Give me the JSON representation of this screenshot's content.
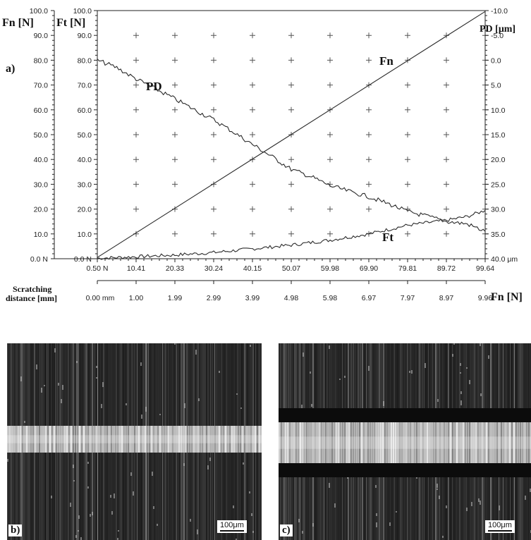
{
  "figure": {
    "panel_a": "a)",
    "panel_b": "b)",
    "panel_c": "c)",
    "scalebar_b": "100μm",
    "scalebar_c": "100μm"
  },
  "chart_data": {
    "type": "line",
    "axis_titles": {
      "fn": "Fn [N]",
      "ft": "Ft [N]",
      "pd": "PD [μm]",
      "x_fn": "Fn [N]",
      "scratching_1": "Scratching",
      "scratching_2": "distance [mm]"
    },
    "left_axis_fn_ticks": [
      "0.0 N",
      "10.0",
      "20.0",
      "30.0",
      "40.0",
      "50.0",
      "60.0",
      "70.0",
      "80.0",
      "90.0",
      "100.0"
    ],
    "left_axis_ft_ticks": [
      "0.0 N",
      "10.0",
      "20.0",
      "30.0",
      "40.0",
      "50.0",
      "60.0",
      "70.0",
      "80.0",
      "90.0",
      "100.0"
    ],
    "right_axis_pd_ticks": [
      "40.0 μm",
      "35.0",
      "30.0",
      "25.0",
      "20.0",
      "15.0",
      "10.0",
      "5.0",
      "0.0",
      "-5.0",
      "-10.0"
    ],
    "x_fn_ticks": [
      "0.50 N",
      "10.41",
      "20.33",
      "30.24",
      "40.15",
      "50.07",
      "59.98",
      "69.90",
      "79.81",
      "89.72",
      "99.64"
    ],
    "x_distance_ticks": [
      "0.00 mm",
      "1.00",
      "1.99",
      "2.99",
      "3.99",
      "4.98",
      "5.98",
      "6.97",
      "7.97",
      "8.97",
      "9.96"
    ],
    "ylim_force": [
      0,
      100
    ],
    "ylim_pd": [
      40,
      -10
    ],
    "xlim_distance": [
      0,
      9.96
    ],
    "grid": "plus markers",
    "series": [
      {
        "name": "Fn",
        "axis": "force",
        "x": [
          0,
          9.96
        ],
        "y": [
          0.5,
          99.64
        ]
      },
      {
        "name": "Ft",
        "axis": "force",
        "x": [
          0,
          1.0,
          1.99,
          2.99,
          3.99,
          4.98,
          5.98,
          6.97,
          7.97,
          8.97,
          9.5,
          9.96
        ],
        "y": [
          0.2,
          0.8,
          1.5,
          2.5,
          4.0,
          5.5,
          7.5,
          10.0,
          13.5,
          15.5,
          17.0,
          19.5
        ]
      },
      {
        "name": "PD",
        "axis": "pd",
        "x": [
          0,
          0.5,
          1.0,
          1.5,
          1.99,
          2.5,
          2.99,
          3.5,
          3.99,
          4.5,
          4.98,
          5.5,
          5.98,
          6.5,
          6.97,
          7.5,
          7.97,
          8.5,
          8.97,
          9.5,
          9.96
        ],
        "y": [
          0.0,
          1.5,
          3.8,
          5.8,
          7.8,
          10.0,
          12.0,
          14.5,
          17.0,
          19.5,
          22.0,
          23.5,
          25.3,
          26.5,
          27.5,
          29.0,
          30.5,
          31.5,
          32.5,
          33.0,
          34.5
        ]
      }
    ],
    "series_labels": [
      "Fn",
      "Ft",
      "PD"
    ]
  }
}
